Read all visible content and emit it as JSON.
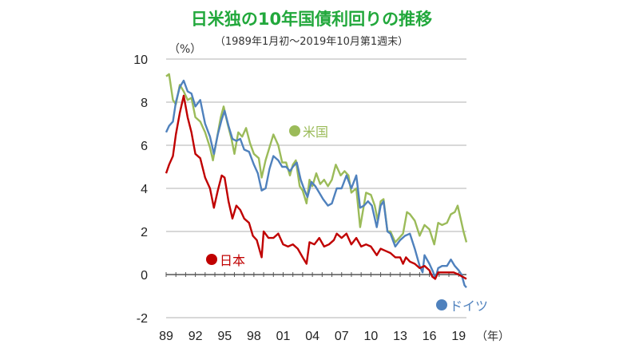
{
  "title": "日米独の10年国債利回りの推移",
  "subtitle": "（1989年1月初～2019年10月第1週末）",
  "chart_data": {
    "type": "line",
    "title": "日米独の10年国債利回りの推移",
    "subtitle": "（1989年1月初～2019年10月第1週末）",
    "ylabel": "（%）",
    "xlabel": "（年）",
    "ylim": [
      -2,
      10
    ],
    "xlim": [
      1989,
      2019.8
    ],
    "y_ticks": [
      "10",
      "8",
      "6",
      "4",
      "2",
      "0",
      "-2"
    ],
    "x_ticks": [
      "89",
      "92",
      "95",
      "98",
      "01",
      "04",
      "07",
      "10",
      "13",
      "16",
      "19"
    ],
    "grid": "horizontal",
    "series": [
      {
        "name": "米国",
        "color": "#9bbb59",
        "points": [
          [
            1989.0,
            9.2
          ],
          [
            1989.3,
            9.3
          ],
          [
            1989.7,
            8.1
          ],
          [
            1990.0,
            7.9
          ],
          [
            1990.4,
            8.8
          ],
          [
            1990.8,
            8.5
          ],
          [
            1991.2,
            8.1
          ],
          [
            1991.6,
            8.2
          ],
          [
            1992.0,
            7.3
          ],
          [
            1992.5,
            7.1
          ],
          [
            1993.0,
            6.6
          ],
          [
            1993.5,
            5.9
          ],
          [
            1993.8,
            5.3
          ],
          [
            1994.2,
            6.3
          ],
          [
            1994.6,
            7.3
          ],
          [
            1994.9,
            7.8
          ],
          [
            1995.3,
            7.0
          ],
          [
            1995.7,
            6.3
          ],
          [
            1996.0,
            5.6
          ],
          [
            1996.4,
            6.6
          ],
          [
            1996.8,
            6.4
          ],
          [
            1997.2,
            6.8
          ],
          [
            1997.6,
            6.1
          ],
          [
            1998.0,
            5.6
          ],
          [
            1998.5,
            5.4
          ],
          [
            1998.8,
            4.5
          ],
          [
            1999.2,
            5.3
          ],
          [
            1999.6,
            5.9
          ],
          [
            2000.0,
            6.5
          ],
          [
            2000.5,
            6.0
          ],
          [
            2000.9,
            5.2
          ],
          [
            2001.3,
            5.2
          ],
          [
            2001.7,
            4.6
          ],
          [
            2002.0,
            5.1
          ],
          [
            2002.3,
            5.3
          ],
          [
            2002.7,
            4.1
          ],
          [
            2003.0,
            3.9
          ],
          [
            2003.4,
            3.3
          ],
          [
            2003.7,
            4.4
          ],
          [
            2004.0,
            4.1
          ],
          [
            2004.4,
            4.7
          ],
          [
            2004.8,
            4.2
          ],
          [
            2005.2,
            4.4
          ],
          [
            2005.6,
            4.1
          ],
          [
            2006.0,
            4.4
          ],
          [
            2006.4,
            5.1
          ],
          [
            2006.9,
            4.6
          ],
          [
            2007.3,
            4.8
          ],
          [
            2007.7,
            4.6
          ],
          [
            2008.0,
            3.8
          ],
          [
            2008.5,
            4.0
          ],
          [
            2008.9,
            2.2
          ],
          [
            2009.2,
            3.0
          ],
          [
            2009.5,
            3.8
          ],
          [
            2010.0,
            3.7
          ],
          [
            2010.4,
            3.2
          ],
          [
            2010.7,
            2.5
          ],
          [
            2011.0,
            3.4
          ],
          [
            2011.3,
            3.5
          ],
          [
            2011.7,
            2.0
          ],
          [
            2012.0,
            2.0
          ],
          [
            2012.5,
            1.5
          ],
          [
            2012.9,
            1.7
          ],
          [
            2013.3,
            1.9
          ],
          [
            2013.7,
            2.9
          ],
          [
            2014.0,
            2.8
          ],
          [
            2014.5,
            2.5
          ],
          [
            2015.0,
            1.8
          ],
          [
            2015.5,
            2.3
          ],
          [
            2016.0,
            2.1
          ],
          [
            2016.5,
            1.4
          ],
          [
            2016.9,
            2.4
          ],
          [
            2017.3,
            2.3
          ],
          [
            2017.8,
            2.4
          ],
          [
            2018.2,
            2.8
          ],
          [
            2018.6,
            2.9
          ],
          [
            2018.9,
            3.2
          ],
          [
            2019.2,
            2.6
          ],
          [
            2019.5,
            2.0
          ],
          [
            2019.8,
            1.5
          ]
        ]
      },
      {
        "name": "ドイツ",
        "color": "#4f81bd",
        "points": [
          [
            1989.0,
            6.6
          ],
          [
            1989.3,
            6.9
          ],
          [
            1989.7,
            7.1
          ],
          [
            1990.0,
            8.0
          ],
          [
            1990.4,
            8.7
          ],
          [
            1990.8,
            9.0
          ],
          [
            1991.2,
            8.5
          ],
          [
            1991.6,
            8.4
          ],
          [
            1992.0,
            7.8
          ],
          [
            1992.5,
            8.1
          ],
          [
            1993.0,
            7.0
          ],
          [
            1993.5,
            6.4
          ],
          [
            1993.9,
            5.6
          ],
          [
            1994.3,
            6.5
          ],
          [
            1994.7,
            7.2
          ],
          [
            1995.0,
            7.6
          ],
          [
            1995.4,
            6.9
          ],
          [
            1995.8,
            6.3
          ],
          [
            1996.2,
            6.2
          ],
          [
            1996.6,
            6.3
          ],
          [
            1997.0,
            5.8
          ],
          [
            1997.5,
            5.7
          ],
          [
            1998.0,
            5.1
          ],
          [
            1998.4,
            4.7
          ],
          [
            1998.8,
            3.9
          ],
          [
            1999.2,
            4.0
          ],
          [
            1999.6,
            4.9
          ],
          [
            2000.0,
            5.5
          ],
          [
            2000.5,
            5.3
          ],
          [
            2000.9,
            5.0
          ],
          [
            2001.3,
            5.0
          ],
          [
            2001.7,
            4.8
          ],
          [
            2002.0,
            5.0
          ],
          [
            2002.4,
            5.2
          ],
          [
            2002.8,
            4.4
          ],
          [
            2003.2,
            3.9
          ],
          [
            2003.5,
            3.6
          ],
          [
            2003.9,
            4.3
          ],
          [
            2004.3,
            4.1
          ],
          [
            2004.7,
            3.8
          ],
          [
            2005.1,
            3.5
          ],
          [
            2005.6,
            3.2
          ],
          [
            2006.0,
            3.3
          ],
          [
            2006.5,
            4.0
          ],
          [
            2007.0,
            4.0
          ],
          [
            2007.5,
            4.6
          ],
          [
            2008.0,
            4.0
          ],
          [
            2008.5,
            4.6
          ],
          [
            2008.9,
            3.1
          ],
          [
            2009.3,
            3.2
          ],
          [
            2009.7,
            3.4
          ],
          [
            2010.1,
            3.2
          ],
          [
            2010.6,
            2.2
          ],
          [
            2011.0,
            3.2
          ],
          [
            2011.3,
            3.4
          ],
          [
            2011.7,
            2.0
          ],
          [
            2012.0,
            1.9
          ],
          [
            2012.5,
            1.3
          ],
          [
            2013.0,
            1.6
          ],
          [
            2013.5,
            1.8
          ],
          [
            2014.0,
            1.9
          ],
          [
            2014.5,
            1.2
          ],
          [
            2015.0,
            0.4
          ],
          [
            2015.3,
            0.1
          ],
          [
            2015.5,
            0.9
          ],
          [
            2016.0,
            0.5
          ],
          [
            2016.4,
            0.1
          ],
          [
            2016.6,
            -0.2
          ],
          [
            2016.9,
            0.3
          ],
          [
            2017.3,
            0.4
          ],
          [
            2017.8,
            0.4
          ],
          [
            2018.2,
            0.7
          ],
          [
            2018.6,
            0.4
          ],
          [
            2019.0,
            0.2
          ],
          [
            2019.3,
            0.0
          ],
          [
            2019.6,
            -0.5
          ],
          [
            2019.8,
            -0.6
          ]
        ]
      },
      {
        "name": "日本",
        "color": "#c00000",
        "points": [
          [
            1989.0,
            4.7
          ],
          [
            1989.3,
            5.1
          ],
          [
            1989.7,
            5.5
          ],
          [
            1990.0,
            6.5
          ],
          [
            1990.4,
            7.5
          ],
          [
            1990.8,
            8.3
          ],
          [
            1991.2,
            7.3
          ],
          [
            1991.6,
            6.6
          ],
          [
            1992.0,
            5.6
          ],
          [
            1992.5,
            5.4
          ],
          [
            1993.0,
            4.5
          ],
          [
            1993.5,
            4.0
          ],
          [
            1993.9,
            3.1
          ],
          [
            1994.3,
            3.9
          ],
          [
            1994.7,
            4.6
          ],
          [
            1995.0,
            4.5
          ],
          [
            1995.4,
            3.4
          ],
          [
            1995.8,
            2.6
          ],
          [
            1996.2,
            3.2
          ],
          [
            1996.6,
            3.0
          ],
          [
            1997.0,
            2.6
          ],
          [
            1997.5,
            2.4
          ],
          [
            1997.9,
            1.8
          ],
          [
            1998.3,
            1.6
          ],
          [
            1998.8,
            0.8
          ],
          [
            1999.0,
            2.0
          ],
          [
            1999.5,
            1.7
          ],
          [
            2000.0,
            1.7
          ],
          [
            2000.5,
            1.9
          ],
          [
            2001.0,
            1.4
          ],
          [
            2001.5,
            1.3
          ],
          [
            2002.0,
            1.4
          ],
          [
            2002.5,
            1.2
          ],
          [
            2003.0,
            0.8
          ],
          [
            2003.4,
            0.5
          ],
          [
            2003.7,
            1.5
          ],
          [
            2004.2,
            1.4
          ],
          [
            2004.7,
            1.7
          ],
          [
            2005.2,
            1.3
          ],
          [
            2005.7,
            1.4
          ],
          [
            2006.2,
            1.6
          ],
          [
            2006.5,
            1.9
          ],
          [
            2007.0,
            1.7
          ],
          [
            2007.5,
            1.9
          ],
          [
            2008.0,
            1.4
          ],
          [
            2008.5,
            1.7
          ],
          [
            2009.0,
            1.3
          ],
          [
            2009.5,
            1.4
          ],
          [
            2010.0,
            1.3
          ],
          [
            2010.6,
            0.9
          ],
          [
            2011.0,
            1.2
          ],
          [
            2011.5,
            1.1
          ],
          [
            2012.0,
            1.0
          ],
          [
            2012.5,
            0.8
          ],
          [
            2013.0,
            0.8
          ],
          [
            2013.3,
            0.5
          ],
          [
            2013.6,
            0.8
          ],
          [
            2014.0,
            0.6
          ],
          [
            2014.5,
            0.5
          ],
          [
            2015.0,
            0.3
          ],
          [
            2015.5,
            0.4
          ],
          [
            2016.0,
            0.2
          ],
          [
            2016.3,
            -0.1
          ],
          [
            2016.6,
            -0.2
          ],
          [
            2016.9,
            0.1
          ],
          [
            2017.5,
            0.1
          ],
          [
            2018.0,
            0.1
          ],
          [
            2018.5,
            0.1
          ],
          [
            2019.0,
            0.0
          ],
          [
            2019.4,
            -0.1
          ],
          [
            2019.8,
            -0.2
          ]
        ]
      }
    ]
  }
}
